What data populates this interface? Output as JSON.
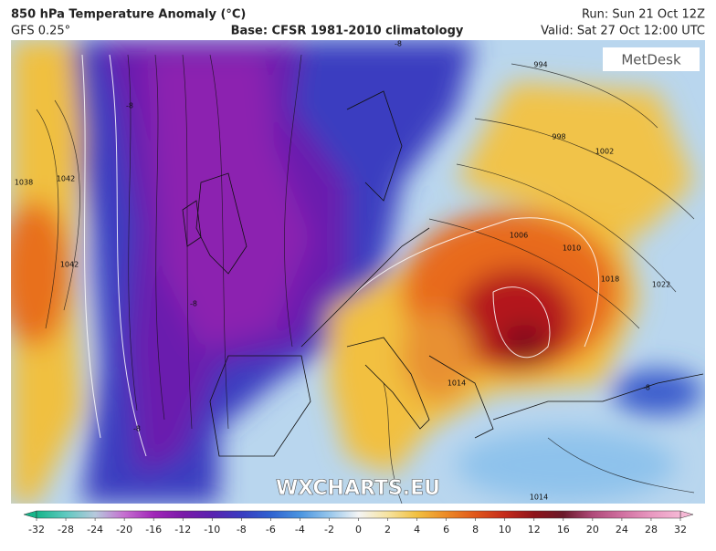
{
  "header": {
    "title": "850 hPa Temperature Anomaly (°C)",
    "model": "GFS 0.25°",
    "base": "Base: CFSR 1981-2010 climatology",
    "run": "Run: Sun 21 Oct 12Z",
    "valid": "Valid: Sat 27 Oct 12:00 UTC"
  },
  "logo": "MetDesk",
  "watermark": "WXCHARTS.EU",
  "contour_labels": [
    "1038",
    "1042",
    "1042",
    "-8",
    "-8",
    "-8",
    "-8",
    "-8",
    "994",
    "998",
    "1002",
    "1006",
    "1010",
    "1014",
    "1018",
    "1022",
    "1014"
  ],
  "colorbar": {
    "ticks": [
      -32,
      -28,
      -24,
      -20,
      -16,
      -12,
      -10,
      -8,
      -6,
      -4,
      -2,
      0,
      2,
      4,
      6,
      8,
      10,
      12,
      16,
      20,
      24,
      28,
      32
    ],
    "colors": [
      "#16b58a",
      "#5fc9c0",
      "#b6c9dc",
      "#c56fd0",
      "#a126b8",
      "#7a1aa8",
      "#5a22b0",
      "#3a3cc0",
      "#2f62d0",
      "#4a94e0",
      "#96c6ec",
      "#f4f4f4",
      "#f6e3a0",
      "#f2c040",
      "#ec8a26",
      "#e0561a",
      "#c42a1a",
      "#8e141a",
      "#6a1a2a",
      "#b04a7a",
      "#d070a0",
      "#e898c0",
      "#f5b8d5"
    ]
  }
}
